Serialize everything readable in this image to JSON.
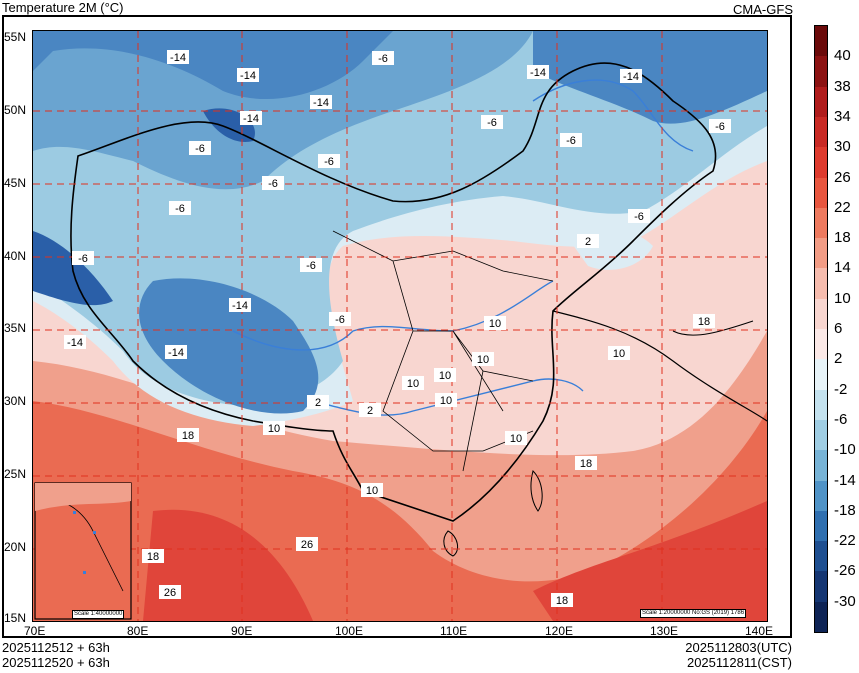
{
  "header": {
    "title": "Temperature  2M (°C)",
    "model": "CMA-GFS"
  },
  "footer": {
    "left_line1": "2025112512 + 63h",
    "left_line2": "2025112520 + 63h",
    "right_line1": "2025112803(UTC)",
    "right_line2": "2025112811(CST)"
  },
  "map": {
    "lat_labels": [
      "55N",
      "50N",
      "45N",
      "40N",
      "35N",
      "30N",
      "25N",
      "20N",
      "15N"
    ],
    "lon_labels": [
      "70E",
      "80E",
      "90E",
      "100E",
      "110E",
      "120E",
      "130E",
      "140E"
    ],
    "scale_main": "Scale 1:20000000 No:GS (2019) 1786",
    "scale_inset": "Scale 1:40000000",
    "contour_labels": [
      "-14",
      "-14",
      "-14",
      "-14",
      "-14",
      "-14",
      "-14",
      "-14",
      "-14",
      "-6",
      "-6",
      "-6",
      "-6",
      "-6",
      "-6",
      "-6",
      "-6",
      "-6",
      "-6",
      "-6",
      "-6",
      "2",
      "2",
      "2",
      "10",
      "10",
      "10",
      "10",
      "10",
      "10",
      "10",
      "10",
      "10",
      "18",
      "18",
      "18",
      "18",
      "26",
      "26",
      "18"
    ],
    "colors": {
      "cold_dark": "#2a5fa8",
      "cold_mid": "#4a86c2",
      "cold_light": "#9ccbe2",
      "mild": "#dcecf4",
      "warm_light": "#f6d4d4",
      "warm_mid": "#ef8f7a",
      "warm_dark": "#e0453a",
      "river": "#3a7fd8",
      "grid": "#e0301e"
    }
  },
  "colorbar": {
    "labels": [
      "40",
      "38",
      "34",
      "30",
      "26",
      "22",
      "18",
      "14",
      "10",
      "6",
      "2",
      "-2",
      "-6",
      "-10",
      "-14",
      "-18",
      "-22",
      "-26",
      "-30"
    ],
    "colors": [
      "#6b0a0a",
      "#8c1212",
      "#b01c1c",
      "#c92a25",
      "#de3b2e",
      "#e8563f",
      "#ee7a5f",
      "#f29c85",
      "#f6bcae",
      "#f8d6d0",
      "#fbe9e7",
      "#e7f3f8",
      "#c4e2ef",
      "#9fcde3",
      "#77b3d6",
      "#4f93c7",
      "#2f6fb0",
      "#1e4f91",
      "#153673",
      "#0e2456"
    ]
  }
}
